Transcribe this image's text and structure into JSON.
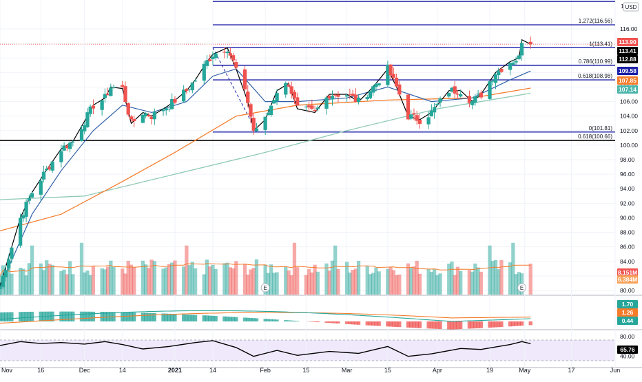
{
  "chart_data": {
    "type": "candlestick",
    "currency": "USD",
    "x_tick_labels": [
      "Nov",
      "16",
      "Dec",
      "14",
      "2021",
      "14",
      "Feb",
      "15",
      "Mar",
      "15",
      "Apr",
      "19",
      "May",
      "17",
      "Jun"
    ],
    "x_tick_dates": [
      "2020-11-02",
      "2020-11-16",
      "2020-12-01",
      "2020-12-14",
      "2021-01-01",
      "2021-01-14",
      "2021-02-01",
      "2021-02-15",
      "2021-03-01",
      "2021-03-15",
      "2021-04-01",
      "2021-04-19",
      "2021-05-01",
      "2021-05-17",
      "2021-06-01"
    ],
    "x_tick_bold": [
      "2021"
    ],
    "price_axis": {
      "ticks": [
        "116.00",
        "114.00",
        "112.00",
        "110.00",
        "108.00",
        "106.00",
        "104.00",
        "102.00",
        "100.00",
        "98.00",
        "96.00",
        "94.00",
        "92.00",
        "90.00",
        "88.00",
        "86.00",
        "84.00",
        "82.00",
        "80.00"
      ],
      "top_label": "1",
      "unit_label": "USD"
    },
    "price_tags": [
      {
        "value": "113.90",
        "color": "#f05350"
      },
      {
        "value": "113.41",
        "color": "#000000"
      },
      {
        "value": "112.88",
        "color": "#000000"
      },
      {
        "value": "109.58",
        "color": "#1a1fa8"
      },
      {
        "value": "107.85",
        "color": "#f57c2b"
      },
      {
        "value": "107.14",
        "color": "#4db6ac"
      }
    ],
    "volume_tags": [
      {
        "value": "8.151M",
        "color": "#f05350"
      },
      {
        "value": "6.384M",
        "color": "#f7a35c"
      }
    ],
    "macd_tags": [
      {
        "value": "1.70",
        "color": "#26a69a"
      },
      {
        "value": "1.26",
        "color": "#f57c2b"
      },
      {
        "value": "0.44",
        "color": "#26a69a"
      }
    ],
    "rsi_axis_ticks": [
      "80.00",
      "40.00"
    ],
    "rsi_tag": {
      "value": "65.76",
      "color": "#000000"
    },
    "fib_levels": [
      {
        "label": "1.272(116.56)",
        "value": 116.56,
        "color": "#1a1fa8"
      },
      {
        "label": "1(113.41)",
        "value": 113.41,
        "color": "#1a1fa8"
      },
      {
        "label": "0.786(110.99)",
        "value": 110.99,
        "color": "#1a1fa8"
      },
      {
        "label": "0.618(108.98)",
        "value": 108.98,
        "color": "#1a1fa8"
      },
      {
        "label": "0(101.81)",
        "value": 101.81,
        "color": "#1a1fa8"
      },
      {
        "label": "0.618(100.66)",
        "value": 100.66,
        "color": "#000000"
      }
    ],
    "earnings_markers": [
      {
        "date": "2021-02-01",
        "label": "E"
      },
      {
        "date": "2021-04-30",
        "label": "E"
      }
    ],
    "price_series": [
      {
        "date": "2020-11-02",
        "close": 80.6
      },
      {
        "date": "2020-11-09",
        "close": 90.0
      },
      {
        "date": "2020-11-13",
        "close": 93.5
      },
      {
        "date": "2020-11-17",
        "close": 96.0
      },
      {
        "date": "2020-11-23",
        "close": 99.5
      },
      {
        "date": "2020-11-27",
        "close": 100.5
      },
      {
        "date": "2020-12-02",
        "close": 104.0
      },
      {
        "date": "2020-12-04",
        "close": 105.5
      },
      {
        "date": "2020-12-08",
        "close": 106.5
      },
      {
        "date": "2020-12-10",
        "close": 108.0
      },
      {
        "date": "2020-12-14",
        "close": 107.8
      },
      {
        "date": "2020-12-17",
        "close": 103.0
      },
      {
        "date": "2020-12-21",
        "close": 104.5
      },
      {
        "date": "2020-12-24",
        "close": 104.0
      },
      {
        "date": "2020-12-30",
        "close": 105.5
      },
      {
        "date": "2021-01-05",
        "close": 107.5
      },
      {
        "date": "2021-01-08",
        "close": 109.0
      },
      {
        "date": "2021-01-12",
        "close": 111.5
      },
      {
        "date": "2021-01-14",
        "close": 112.5
      },
      {
        "date": "2021-01-19",
        "close": 113.4
      },
      {
        "date": "2021-01-22",
        "close": 110.5
      },
      {
        "date": "2021-01-26",
        "close": 106.0
      },
      {
        "date": "2021-01-28",
        "close": 102.0
      },
      {
        "date": "2021-02-01",
        "close": 103.5
      },
      {
        "date": "2021-02-05",
        "close": 107.5
      },
      {
        "date": "2021-02-09",
        "close": 108.5
      },
      {
        "date": "2021-02-12",
        "close": 105.0
      },
      {
        "date": "2021-02-18",
        "close": 104.5
      },
      {
        "date": "2021-02-23",
        "close": 107.0
      },
      {
        "date": "2021-03-01",
        "close": 107.0
      },
      {
        "date": "2021-03-05",
        "close": 106.0
      },
      {
        "date": "2021-03-10",
        "close": 108.0
      },
      {
        "date": "2021-03-15",
        "close": 110.5
      },
      {
        "date": "2021-03-18",
        "close": 108.0
      },
      {
        "date": "2021-03-22",
        "close": 104.0
      },
      {
        "date": "2021-03-26",
        "close": 103.5
      },
      {
        "date": "2021-03-30",
        "close": 104.5
      },
      {
        "date": "2021-04-05",
        "close": 107.5
      },
      {
        "date": "2021-04-09",
        "close": 107.5
      },
      {
        "date": "2021-04-13",
        "close": 106.0
      },
      {
        "date": "2021-04-16",
        "close": 107.0
      },
      {
        "date": "2021-04-21",
        "close": 110.0
      },
      {
        "date": "2021-04-26",
        "close": 111.5
      },
      {
        "date": "2021-04-29",
        "close": 112.0
      },
      {
        "date": "2021-04-30",
        "close": 114.5
      },
      {
        "date": "2021-05-03",
        "close": 113.9
      }
    ],
    "ema_fast": [
      {
        "date": "2020-11-02",
        "value": 80.5
      },
      {
        "date": "2020-11-13",
        "value": 90.5
      },
      {
        "date": "2020-11-23",
        "value": 96.5
      },
      {
        "date": "2020-12-04",
        "value": 102.0
      },
      {
        "date": "2020-12-14",
        "value": 105.5
      },
      {
        "date": "2020-12-24",
        "value": 104.5
      },
      {
        "date": "2021-01-05",
        "value": 106.0
      },
      {
        "date": "2021-01-14",
        "value": 109.5
      },
      {
        "date": "2021-01-22",
        "value": 110.5
      },
      {
        "date": "2021-02-01",
        "value": 106.0
      },
      {
        "date": "2021-02-12",
        "value": 106.0
      },
      {
        "date": "2021-03-01",
        "value": 106.5
      },
      {
        "date": "2021-03-15",
        "value": 108.0
      },
      {
        "date": "2021-03-30",
        "value": 106.0
      },
      {
        "date": "2021-04-13",
        "value": 106.5
      },
      {
        "date": "2021-04-26",
        "value": 109.0
      },
      {
        "date": "2021-05-03",
        "value": 110.2
      }
    ],
    "ema_slow": [
      {
        "date": "2020-11-02",
        "value": 88.2
      },
      {
        "date": "2020-11-23",
        "value": 90.5
      },
      {
        "date": "2020-12-14",
        "value": 95.0
      },
      {
        "date": "2021-01-01",
        "value": 99.0
      },
      {
        "date": "2021-01-22",
        "value": 104.0
      },
      {
        "date": "2021-02-12",
        "value": 105.5
      },
      {
        "date": "2021-03-15",
        "value": 106.2
      },
      {
        "date": "2021-04-13",
        "value": 106.5
      },
      {
        "date": "2021-05-03",
        "value": 107.85
      }
    ],
    "sma_long": [
      {
        "date": "2020-11-02",
        "value": 92.5
      },
      {
        "date": "2020-12-01",
        "value": 93.0
      },
      {
        "date": "2021-01-01",
        "value": 96.0
      },
      {
        "date": "2021-02-01",
        "value": 99.0
      },
      {
        "date": "2021-03-01",
        "value": 102.0
      },
      {
        "date": "2021-04-01",
        "value": 105.0
      },
      {
        "date": "2021-05-03",
        "value": 107.14
      }
    ],
    "rsi_series": [
      {
        "date": "2020-11-02",
        "value": 62
      },
      {
        "date": "2020-11-09",
        "value": 70
      },
      {
        "date": "2020-11-16",
        "value": 66
      },
      {
        "date": "2020-11-23",
        "value": 68
      },
      {
        "date": "2020-12-01",
        "value": 65
      },
      {
        "date": "2020-12-08",
        "value": 70
      },
      {
        "date": "2020-12-14",
        "value": 64
      },
      {
        "date": "2020-12-21",
        "value": 55
      },
      {
        "date": "2020-12-30",
        "value": 60
      },
      {
        "date": "2021-01-08",
        "value": 68
      },
      {
        "date": "2021-01-14",
        "value": 72
      },
      {
        "date": "2021-01-22",
        "value": 58
      },
      {
        "date": "2021-01-28",
        "value": 40
      },
      {
        "date": "2021-02-05",
        "value": 52
      },
      {
        "date": "2021-02-12",
        "value": 42
      },
      {
        "date": "2021-02-23",
        "value": 50
      },
      {
        "date": "2021-03-05",
        "value": 46
      },
      {
        "date": "2021-03-15",
        "value": 60
      },
      {
        "date": "2021-03-22",
        "value": 40
      },
      {
        "date": "2021-03-30",
        "value": 45
      },
      {
        "date": "2021-04-09",
        "value": 56
      },
      {
        "date": "2021-04-16",
        "value": 54
      },
      {
        "date": "2021-04-26",
        "value": 64
      },
      {
        "date": "2021-04-30",
        "value": 70
      },
      {
        "date": "2021-05-03",
        "value": 65.76
      }
    ]
  }
}
